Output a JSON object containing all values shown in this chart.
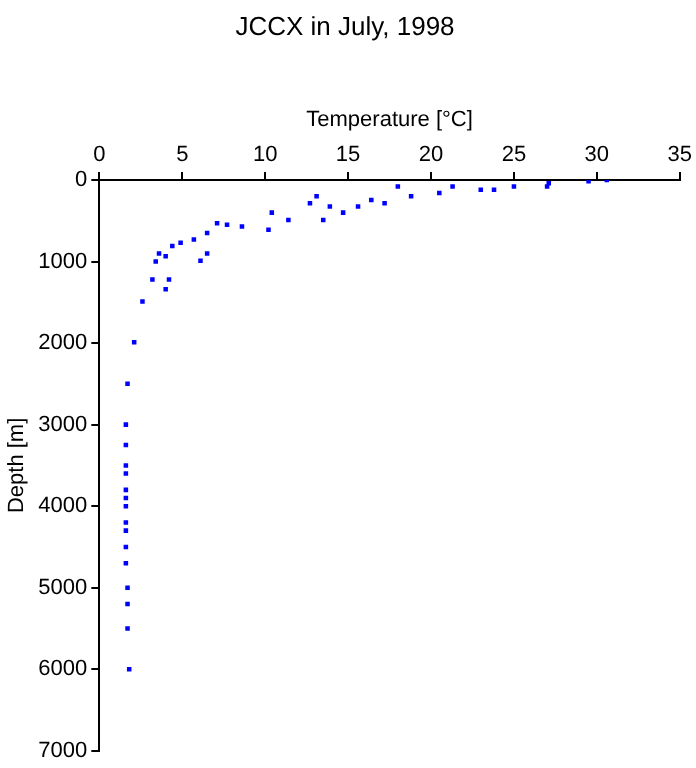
{
  "chart_data": {
    "type": "scatter",
    "title": "JCCX in July, 1998",
    "xlabel": "Temperature [°C]",
    "ylabel": "Depth [m]",
    "series": [
      {
        "color": "#0000ff",
        "x": [
          30.6,
          29.5,
          27.1,
          27,
          25,
          23.8,
          23,
          21.3,
          20.5,
          18.8,
          18,
          17.2,
          16.4,
          15.6,
          14.7,
          13.9,
          13.1,
          12.7,
          13.5,
          11.4,
          10.4,
          10.2,
          8.6,
          7.7,
          7.1,
          6.5,
          5.7,
          4.9,
          4.4,
          6.5,
          6.1,
          4,
          3.4,
          3.6,
          3.2,
          4.2,
          4,
          2.6,
          2.1,
          1.7,
          1.6,
          1.6,
          1.6,
          1.6,
          1.6,
          1.6,
          1.6,
          1.6,
          1.6,
          1.6,
          1.6,
          1.7,
          1.7,
          1.7,
          1.8
        ],
        "values": [
          0,
          16,
          40,
          80,
          80,
          120,
          120,
          80,
          160,
          200,
          80,
          285,
          245,
          325,
          400,
          325,
          200,
          285,
          490,
          490,
          400,
          610,
          570,
          550,
          530,
          650,
          730,
          770,
          810,
          900,
          990,
          935,
          1000,
          900,
          1220,
          1220,
          1340,
          1490,
          1990,
          2500,
          3000,
          3250,
          3500,
          3600,
          3800,
          3900,
          4000,
          4200,
          4300,
          4500,
          4700,
          5000,
          5200,
          5500,
          6000
        ]
      }
    ],
    "xlim": [
      0,
      35
    ],
    "xticks": [
      0,
      5,
      10,
      15,
      20,
      25,
      30,
      35
    ],
    "ylim": [
      7000,
      0
    ],
    "yticks": [
      0,
      1000,
      2000,
      3000,
      4000,
      5000,
      6000,
      7000
    ],
    "marker": "square"
  }
}
